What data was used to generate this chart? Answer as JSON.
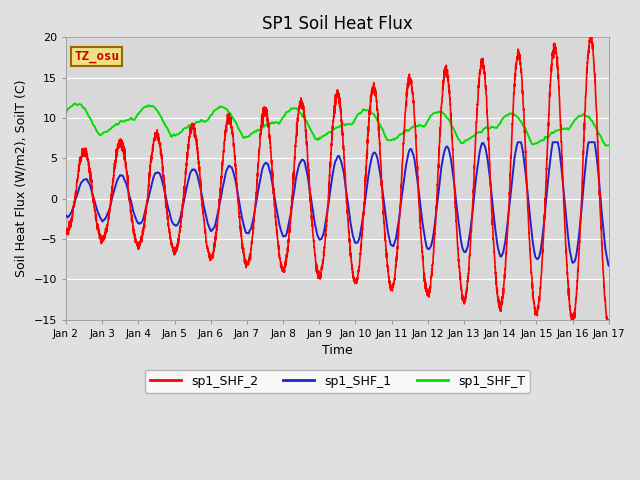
{
  "title": "SP1 Soil Heat Flux",
  "xlabel": "Time",
  "ylabel": "Soil Heat Flux (W/m2), SoilT (C)",
  "ylim": [
    -15,
    20
  ],
  "xlim": [
    2,
    17
  ],
  "xtick_labels": [
    "Jan 2",
    "Jan 3",
    "Jan 4",
    "Jan 5",
    "Jan 6",
    "Jan 7",
    "Jan 8",
    "Jan 9",
    "Jan 10",
    "Jan 11",
    "Jan 12",
    "Jan 13",
    "Jan 14",
    "Jan 15",
    "Jan 16",
    "Jan 17"
  ],
  "xtick_positions": [
    2,
    3,
    4,
    5,
    6,
    7,
    8,
    9,
    10,
    11,
    12,
    13,
    14,
    15,
    16,
    17
  ],
  "ytick_positions": [
    -15,
    -10,
    -5,
    0,
    5,
    10,
    15,
    20
  ],
  "color_red": "#ff0000",
  "color_blue": "#2222cc",
  "color_green": "#00dd00",
  "bg_color": "#e0e0e0",
  "plot_bg_color": "#d8d8d8",
  "legend_labels": [
    "sp1_SHF_2",
    "sp1_SHF_1",
    "sp1_SHF_T"
  ],
  "watermark_text": "TZ_osu",
  "watermark_bg": "#f0e080",
  "watermark_border": "#996600",
  "title_fontsize": 12,
  "axis_label_fontsize": 9,
  "tick_fontsize": 8,
  "legend_fontsize": 9,
  "linewidth_red": 1.2,
  "linewidth_blue": 1.4,
  "linewidth_green": 1.4,
  "seed": 12345
}
